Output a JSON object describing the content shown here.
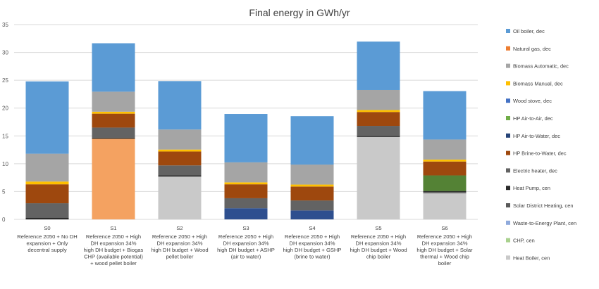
{
  "chart_data": {
    "type": "bar",
    "stacked": true,
    "title": "Final energy in GWh/yr",
    "xlabel": "",
    "ylabel": "",
    "ylim": [
      0,
      35
    ],
    "yticks": [
      0,
      5,
      10,
      15,
      20,
      25,
      30,
      35
    ],
    "grid": true,
    "legend_position": "right",
    "categories": [
      {
        "code": "S0",
        "lines": [
          "Reference 2050 + No DH",
          "expansion + Only",
          "decentral supply"
        ]
      },
      {
        "code": "S1",
        "lines": [
          "Reference 2050 + High",
          "DH expansion 34%",
          "high DH budget + Biogas",
          "CHP (available potential)",
          "+ wood pellet boiler"
        ]
      },
      {
        "code": "S2",
        "lines": [
          "Reference 2050 + High",
          "DH expansion 34%",
          "high DH budget + Wood",
          "pellet boiler"
        ]
      },
      {
        "code": "S3",
        "lines": [
          "Reference 2050 + High",
          "DH expansion 34%",
          "high DH budget + ASHP",
          "(air to water)"
        ]
      },
      {
        "code": "S4",
        "lines": [
          "Reference 2050 + High",
          "DH expansion 34%",
          "high DH budget + GSHP",
          "(brine to water)"
        ]
      },
      {
        "code": "S5",
        "lines": [
          "Reference 2050 + High",
          "DH expansion 34%",
          "high DH budget + Wood",
          "chip boiler"
        ]
      },
      {
        "code": "S6",
        "lines": [
          "Reference 2050 + High",
          "DH expansion 34%",
          "high DH budget + Solar",
          "thermal + Wood chip",
          "boiler"
        ]
      }
    ],
    "series": [
      {
        "name": "Oil boiler, dec",
        "color": "#5b9bd5",
        "values": [
          13.0,
          8.7,
          8.7,
          8.7,
          8.7,
          8.7,
          8.7
        ]
      },
      {
        "name": "Natural gas, dec",
        "color": "#ed7d31",
        "values": [
          0,
          0,
          0,
          0,
          0,
          0,
          0
        ]
      },
      {
        "name": "Biomass Automatic, dec",
        "color": "#a5a5a5",
        "values": [
          5.0,
          3.6,
          3.6,
          3.6,
          3.6,
          3.6,
          3.6
        ]
      },
      {
        "name": "Biomass Manual, dec",
        "color": "#ffc000",
        "values": [
          0.5,
          0.35,
          0.35,
          0.35,
          0.35,
          0.35,
          0.35
        ]
      },
      {
        "name": "Wood stove, dec",
        "color": "#4472c4",
        "values": [
          0,
          0,
          0,
          0,
          0,
          0,
          0
        ]
      },
      {
        "name": "HP Air-to-Air, dec",
        "color": "#70ad47",
        "values": [
          0,
          0,
          0,
          0,
          0,
          0,
          0
        ]
      },
      {
        "name": "HP Air-to-Water, dec",
        "color": "#264478",
        "values": [
          0,
          0,
          0,
          0,
          0,
          0,
          0
        ]
      },
      {
        "name": "HP Brine-to-Water, dec",
        "color": "#9e480e",
        "values": [
          3.4,
          2.5,
          2.5,
          2.5,
          2.5,
          2.5,
          2.5
        ]
      },
      {
        "name": "Electric heater, dec",
        "color": "#636363",
        "values": [
          2.6,
          1.8,
          1.8,
          1.8,
          1.8,
          1.8,
          1.8
        ]
      },
      {
        "name": "Heat Pump, cen",
        "color": "#2a2a2a",
        "values": [
          0.3,
          0.2,
          0.2,
          0.2,
          0.2,
          0.2,
          0.2
        ]
      },
      {
        "name": "Solar District Heating, cen",
        "color": "#5a5a5a",
        "values": [
          0,
          0,
          0,
          0,
          0,
          0,
          0.2
        ]
      },
      {
        "name": "Waste-to-Energy Plant, cen",
        "color": "#8faadc",
        "values": [
          0,
          0,
          0,
          0,
          0,
          0,
          0
        ]
      },
      {
        "name": "CHP, cen",
        "color": "#a9d18e",
        "values": [
          0,
          14.5,
          0,
          0,
          0,
          0,
          0
        ]
      },
      {
        "name": "Heat Boiler, cen",
        "color": "#c9c9c9",
        "values": [
          0,
          0,
          7.7,
          0,
          0,
          14.8,
          4.7
        ]
      }
    ],
    "overrides": [
      {
        "category": 1,
        "series": 12,
        "color": "#f4a261"
      },
      {
        "category": 3,
        "series": 9,
        "color": "#2e4f8f",
        "value": 2.0
      },
      {
        "category": 4,
        "series": 9,
        "color": "#2e4f8f",
        "value": 1.6
      },
      {
        "category": 6,
        "series": 8,
        "color": "#548235",
        "value": 2.8
      }
    ]
  }
}
